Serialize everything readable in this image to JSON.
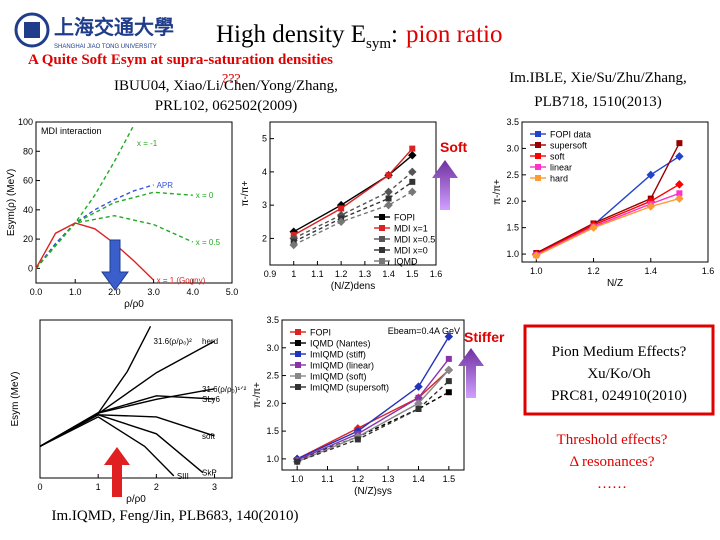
{
  "logo": {
    "name": "上海交通大學",
    "en": "SHANGHAI JIAO TONG UNIVERSITY"
  },
  "title": {
    "main": "High density E",
    "sub": "sym",
    "colon": ":",
    "highlight": "pion ratio"
  },
  "subtitle": {
    "text": "A Quite Soft Esym at supra-saturation densities",
    "note": "???"
  },
  "refs": {
    "top_left": [
      "IBUU04, Xiao/Li/Chen/Yong/Zhang,",
      "PRL102, 062502(2009)"
    ],
    "top_right": [
      "Im.IBLE, Xie/Su/Zhu/Zhang,",
      "PLB718, 1510(2013)"
    ],
    "bottom_left": "Im.IQMD, Feng/Jin, PLB683, 140(2010)"
  },
  "labels": {
    "soft": "Soft",
    "stiffer": "Stiffer"
  },
  "box": [
    "Pion Medium Effects?",
    "Xu/Ko/Oh",
    "PRC81, 024910(2010)"
  ],
  "questions": [
    "Threshold effects?",
    "Δ resonances?",
    "……"
  ],
  "panels": [
    {
      "title": "MDI interaction",
      "xlabel": "ρ/ρ0",
      "ylabel": "Esym(ρ) (MeV)",
      "xlim": [
        0,
        5
      ],
      "ylim": [
        -10,
        100
      ],
      "xticks": [
        {
          "value": 0,
          "label": "0.0"
        },
        {
          "value": 1,
          "label": "1.0"
        },
        {
          "value": 2,
          "label": "2.0"
        },
        {
          "value": 3,
          "label": "3.0"
        },
        {
          "value": 4,
          "label": "4.0"
        },
        {
          "value": 5,
          "label": "5.0"
        }
      ],
      "yticks": [
        0,
        20,
        40,
        60,
        80,
        100
      ],
      "legend": "inline",
      "markers": false,
      "series": [
        {
          "name": "x = -1",
          "color": "#22aa22",
          "dash": true,
          "x": [
            0,
            0.5,
            1,
            1.5,
            2,
            2.5
          ],
          "values": [
            0,
            17,
            31,
            50,
            73,
            98
          ]
        },
        {
          "name": "APR",
          "color": "#3355dd",
          "dash": true,
          "x": [
            0,
            0.5,
            1,
            1.5,
            2,
            2.5,
            3
          ],
          "values": [
            0,
            17,
            31,
            40,
            47,
            53,
            57
          ]
        },
        {
          "name": "x = 0",
          "color": "#22aa22",
          "dash": true,
          "x": [
            0,
            1,
            2,
            3,
            4
          ],
          "values": [
            0,
            31,
            45,
            52,
            50
          ]
        },
        {
          "name": "x = 0.5",
          "color": "#22aa22",
          "dash": true,
          "x": [
            0,
            1,
            2,
            3,
            4
          ],
          "values": [
            0,
            31,
            36,
            30,
            18
          ]
        },
        {
          "name": "x = 1 (Gogny)",
          "color": "#dd2222",
          "dash": false,
          "x": [
            0,
            0.5,
            1,
            1.5,
            2,
            2.5,
            3
          ],
          "values": [
            0,
            24,
            31,
            27,
            17,
            5,
            -8
          ]
        }
      ]
    },
    {
      "xlabel": "(N/Z)dens",
      "ylabel": "π-/π+",
      "xlim": [
        0.9,
        1.6
      ],
      "ylim": [
        1.2,
        5.5
      ],
      "xticks": [
        0.9,
        1,
        1.1,
        1.2,
        1.3,
        1.4,
        1.5,
        1.6
      ],
      "yticks": [
        2,
        3,
        4,
        5
      ],
      "legend": "lower right",
      "markers": true,
      "series": [
        {
          "name": "FOPI",
          "color": "#000000",
          "dash": false,
          "x": [
            1.0,
            1.2,
            1.4,
            1.5
          ],
          "values": [
            2.2,
            3.0,
            3.9,
            4.5
          ]
        },
        {
          "name": "MDI x=1",
          "color": "#dd2222",
          "dash": false,
          "x": [
            1.0,
            1.2,
            1.4,
            1.5
          ],
          "values": [
            2.1,
            2.9,
            3.9,
            4.7
          ]
        },
        {
          "name": "MDI x=0.5",
          "color": "#555555",
          "dash": true,
          "x": [
            1.0,
            1.2,
            1.4,
            1.5
          ],
          "values": [
            2.0,
            2.7,
            3.4,
            4.0
          ]
        },
        {
          "name": "MDI x=0",
          "color": "#333333",
          "dash": true,
          "x": [
            1.0,
            1.2,
            1.4,
            1.5
          ],
          "values": [
            1.9,
            2.6,
            3.2,
            3.7
          ]
        },
        {
          "name": "IQMD",
          "color": "#777777",
          "dash": true,
          "x": [
            1.0,
            1.2,
            1.4,
            1.5
          ],
          "values": [
            1.8,
            2.5,
            3.0,
            3.4
          ]
        }
      ]
    },
    {
      "xlabel": "N/Z",
      "ylabel": "π-/π+",
      "xlim": [
        0.95,
        1.6
      ],
      "ylim": [
        0.85,
        3.5
      ],
      "xticks": [
        {
          "value": 1,
          "label": "1.0"
        },
        1.2,
        1.4,
        1.6
      ],
      "yticks": [
        {
          "value": 1,
          "label": "1.0"
        },
        1.5,
        {
          "value": 2,
          "label": "2.0"
        },
        2.5,
        {
          "value": 3,
          "label": "3.0"
        },
        3.5
      ],
      "legend": "upper left",
      "markers": true,
      "series": [
        {
          "name": "FOPI data",
          "color": "#2244cc",
          "dash": false,
          "x": [
            1.0,
            1.2,
            1.4,
            1.5
          ],
          "values": [
            1.0,
            1.55,
            2.5,
            2.85
          ]
        },
        {
          "name": "supersoft",
          "color": "#990000",
          "dash": false,
          "x": [
            1.0,
            1.2,
            1.4,
            1.5
          ],
          "values": [
            1.02,
            1.58,
            2.05,
            3.1
          ]
        },
        {
          "name": "soft",
          "color": "#ff0000",
          "dash": false,
          "x": [
            1.0,
            1.2,
            1.4,
            1.5
          ],
          "values": [
            1.0,
            1.55,
            2.0,
            2.32
          ]
        },
        {
          "name": "linear",
          "color": "#ff33cc",
          "dash": false,
          "x": [
            1.0,
            1.2,
            1.4,
            1.5
          ],
          "values": [
            0.98,
            1.52,
            1.95,
            2.15
          ]
        },
        {
          "name": "hard",
          "color": "#ff9933",
          "dash": false,
          "x": [
            1.0,
            1.2,
            1.4,
            1.5
          ],
          "values": [
            0.97,
            1.5,
            1.9,
            2.05
          ]
        }
      ]
    },
    {
      "xlabel": "ρ/ρ0",
      "ylabel": "Esym (MeV)",
      "xlim": [
        0,
        3.3
      ],
      "ylim": [
        -30,
        120
      ],
      "xticks": [
        0,
        1,
        2,
        3
      ],
      "legend": "inline",
      "markers": false,
      "series": [
        {
          "name": "31.6(ρ/ρ₀)²",
          "color": "#000000",
          "dash": false,
          "x": [
            0,
            1,
            1.5,
            1.9
          ],
          "values": [
            0,
            31.6,
            71.1,
            114
          ]
        },
        {
          "name": "herd",
          "color": "#000000",
          "dash": false,
          "x": [
            0,
            1,
            2,
            3
          ],
          "values": [
            0,
            31,
            70,
            100
          ]
        },
        {
          "name": "31.6(ρ/ρ₀)¹ᐟ²",
          "color": "#000000",
          "dash": false,
          "x": [
            0,
            1,
            2,
            3
          ],
          "values": [
            0,
            31.6,
            44.7,
            54.7
          ]
        },
        {
          "name": "SLy6",
          "color": "#000000",
          "dash": false,
          "x": [
            0,
            1,
            2,
            3
          ],
          "values": [
            0,
            32,
            48,
            45
          ]
        },
        {
          "name": "soft",
          "color": "#000000",
          "dash": false,
          "x": [
            0,
            1,
            2,
            3
          ],
          "values": [
            0,
            30,
            28,
            10
          ]
        },
        {
          "name": "SkP",
          "color": "#000000",
          "dash": false,
          "x": [
            0,
            1,
            2,
            2.8
          ],
          "values": [
            0,
            30,
            12,
            -25
          ]
        },
        {
          "name": "SIII",
          "color": "#000000",
          "dash": false,
          "x": [
            0,
            1,
            1.8,
            2.3
          ],
          "values": [
            0,
            28,
            0,
            -28
          ]
        }
      ]
    },
    {
      "annotation": "Ebeam=0.4A GeV",
      "xlabel": "(N/Z)sys",
      "ylabel": "π-/π+",
      "xlim": [
        0.95,
        1.55
      ],
      "ylim": [
        0.8,
        3.5
      ],
      "xticks": [
        {
          "value": 1,
          "label": "1.0"
        },
        1.1,
        1.2,
        1.3,
        1.4,
        1.5
      ],
      "yticks": [
        {
          "value": 1,
          "label": "1.0"
        },
        1.5,
        {
          "value": 2,
          "label": "2.0"
        },
        2.5,
        {
          "value": 3,
          "label": "3.0"
        },
        3.5
      ],
      "legend": "upper left",
      "markers": true,
      "series": [
        {
          "name": "FOPI",
          "color": "#dd2222",
          "dash": false,
          "x": [
            1.0,
            1.2,
            1.4,
            1.5
          ],
          "values": [
            1.0,
            1.55,
            2.1,
            2.6
          ]
        },
        {
          "name": "IQMD (Nantes)",
          "color": "#000000",
          "dash": true,
          "x": [
            1.0,
            1.2,
            1.4,
            1.5
          ],
          "values": [
            0.98,
            1.4,
            1.9,
            2.2
          ]
        },
        {
          "name": "ImIQMD (stiff)",
          "color": "#2233bb",
          "dash": false,
          "x": [
            1.0,
            1.2,
            1.4,
            1.5
          ],
          "values": [
            1.0,
            1.5,
            2.3,
            3.2
          ]
        },
        {
          "name": "ImIQMD (linear)",
          "color": "#8833aa",
          "dash": false,
          "x": [
            1.0,
            1.2,
            1.4,
            1.5
          ],
          "values": [
            0.98,
            1.45,
            2.1,
            2.8
          ]
        },
        {
          "name": "ImIQMD (soft)",
          "color": "#888888",
          "dash": false,
          "x": [
            1.0,
            1.2,
            1.4,
            1.5
          ],
          "values": [
            0.95,
            1.4,
            2.0,
            2.6
          ]
        },
        {
          "name": "ImIQMD (supersoft)",
          "color": "#333333",
          "dash": true,
          "x": [
            1.0,
            1.2,
            1.4,
            1.5
          ],
          "values": [
            0.95,
            1.35,
            1.9,
            2.4
          ]
        }
      ]
    }
  ]
}
